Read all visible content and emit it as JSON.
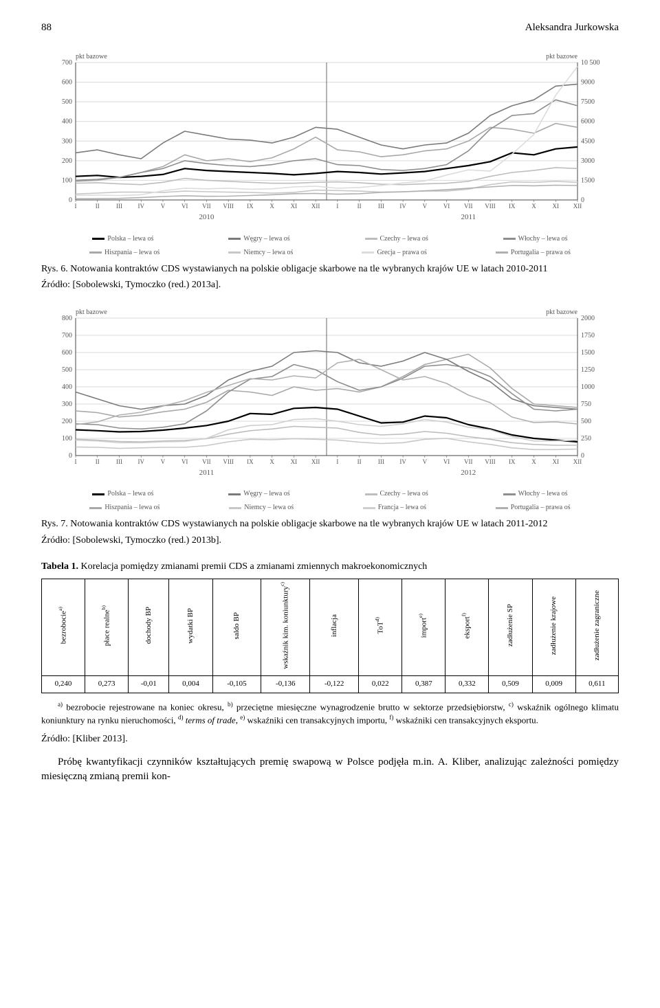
{
  "page": {
    "number": "88",
    "author": "Aleksandra Jurkowska"
  },
  "chart1": {
    "type": "line",
    "left_axis_label": "pkt bazowe",
    "right_axis_label": "pkt bazowe",
    "left_ticks": [
      0,
      100,
      200,
      300,
      400,
      500,
      600,
      700
    ],
    "right_ticks": [
      0,
      1500,
      3000,
      4500,
      6000,
      7500,
      9000,
      10500
    ],
    "x_months": [
      "I",
      "II",
      "III",
      "IV",
      "V",
      "VI",
      "VII",
      "VIII",
      "IX",
      "X",
      "XI",
      "XII",
      "I",
      "II",
      "III",
      "IV",
      "V",
      "VI",
      "VII",
      "VIII",
      "IX",
      "X",
      "XI",
      "XII"
    ],
    "x_years": [
      "2010",
      "2011"
    ],
    "background_color": "#ffffff",
    "grid_color": "#d9d9d9",
    "axis_color": "#444444",
    "text_color": "#555555",
    "label_fontsize": 10,
    "line_width_main": 2.2,
    "line_width_other": 1.6,
    "series": [
      {
        "name": "Polska – lewa oś",
        "color": "#000000",
        "width": 2.2,
        "axis": "left",
        "data": [
          120,
          125,
          115,
          120,
          130,
          160,
          150,
          145,
          140,
          135,
          128,
          135,
          145,
          140,
          132,
          138,
          145,
          160,
          175,
          195,
          240,
          230,
          260,
          270
        ]
      },
      {
        "name": "Hiszpania – lewa oś",
        "color": "#a8a8a8",
        "width": 1.6,
        "axis": "left",
        "data": [
          95,
          100,
          115,
          140,
          170,
          230,
          200,
          210,
          195,
          215,
          260,
          320,
          255,
          245,
          220,
          230,
          250,
          260,
          300,
          370,
          360,
          340,
          390,
          370
        ]
      },
      {
        "name": "Węgry – lewa oś",
        "color": "#7a7a7a",
        "width": 1.6,
        "axis": "left",
        "data": [
          240,
          255,
          230,
          210,
          290,
          350,
          330,
          310,
          305,
          290,
          320,
          370,
          360,
          320,
          280,
          260,
          280,
          290,
          340,
          430,
          480,
          510,
          580,
          590
        ]
      },
      {
        "name": "Niemcy – lewa oś",
        "color": "#c7c7c7",
        "width": 1.6,
        "axis": "left",
        "data": [
          30,
          35,
          40,
          40,
          38,
          45,
          42,
          40,
          38,
          35,
          38,
          50,
          48,
          45,
          40,
          42,
          45,
          45,
          55,
          78,
          92,
          90,
          95,
          90
        ]
      },
      {
        "name": "Czechy – lewa oś",
        "color": "#bdbdbd",
        "width": 1.6,
        "axis": "left",
        "data": [
          85,
          88,
          82,
          78,
          90,
          110,
          100,
          95,
          90,
          85,
          85,
          90,
          92,
          88,
          80,
          78,
          82,
          85,
          95,
          120,
          140,
          150,
          165,
          160
        ]
      },
      {
        "name": "Włochy – lewa oś",
        "color": "#8e8e8e",
        "width": 1.6,
        "axis": "left",
        "data": [
          100,
          105,
          115,
          140,
          160,
          200,
          185,
          175,
          170,
          180,
          200,
          210,
          180,
          175,
          155,
          150,
          160,
          180,
          250,
          360,
          430,
          440,
          510,
          480
        ]
      },
      {
        "name": "Grecja – prawa oś",
        "color": "#dcdcdc",
        "width": 1.6,
        "axis": "right",
        "data": [
          350,
          370,
          340,
          400,
          700,
          900,
          850,
          900,
          820,
          850,
          1000,
          1050,
          900,
          950,
          1100,
          1300,
          1450,
          1900,
          2300,
          2200,
          3500,
          5000,
          8000,
          10200
        ]
      },
      {
        "name": "Portugalia – prawa oś",
        "color": "#b0b0b0",
        "width": 1.6,
        "axis": "right",
        "data": [
          95,
          100,
          120,
          180,
          260,
          320,
          280,
          290,
          340,
          400,
          480,
          500,
          440,
          480,
          580,
          620,
          700,
          780,
          900,
          1000,
          1100,
          1080,
          1130,
          1100
        ]
      }
    ],
    "legend": [
      {
        "label": "Polska – lewa oś",
        "color": "#000000"
      },
      {
        "label": "Węgry – lewa oś",
        "color": "#7a7a7a"
      },
      {
        "label": "Czechy – lewa oś",
        "color": "#bdbdbd"
      },
      {
        "label": "Włochy – lewa oś",
        "color": "#8e8e8e"
      },
      {
        "label": "Hiszpania – lewa oś",
        "color": "#a8a8a8"
      },
      {
        "label": "Niemcy – lewa oś",
        "color": "#c7c7c7"
      },
      {
        "label": "Grecja – prawa oś",
        "color": "#dcdcdc"
      },
      {
        "label": "Portugalia – prawa oś",
        "color": "#b0b0b0"
      }
    ],
    "caption": "Rys. 6. Notowania kontraktów CDS wystawianych na polskie obligacje skarbowe na tle wybranych krajów UE w latach 2010-2011",
    "source": "Źródło: [Sobolewski, Tymoczko (red.) 2013a]."
  },
  "chart2": {
    "type": "line",
    "left_axis_label": "pkt bazowe",
    "right_axis_label": "pkt bazowe",
    "left_ticks": [
      0,
      100,
      200,
      300,
      400,
      500,
      600,
      700,
      800
    ],
    "right_ticks": [
      0,
      250,
      500,
      750,
      1000,
      1250,
      1500,
      1750,
      2000
    ],
    "x_months": [
      "I",
      "II",
      "III",
      "IV",
      "V",
      "VI",
      "VII",
      "VIII",
      "IX",
      "X",
      "XI",
      "XII",
      "I",
      "II",
      "III",
      "IV",
      "V",
      "VI",
      "VII",
      "VIII",
      "IX",
      "X",
      "XI",
      "XII"
    ],
    "x_years": [
      "2011",
      "2012"
    ],
    "background_color": "#ffffff",
    "grid_color": "#d9d9d9",
    "axis_color": "#444444",
    "text_color": "#555555",
    "label_fontsize": 10,
    "line_width_main": 2.2,
    "line_width_other": 1.6,
    "series": [
      {
        "name": "Polska – lewa oś",
        "color": "#000000",
        "width": 2.2,
        "axis": "left",
        "data": [
          150,
          145,
          138,
          140,
          148,
          160,
          175,
          200,
          245,
          240,
          275,
          280,
          270,
          230,
          190,
          195,
          230,
          220,
          180,
          155,
          120,
          100,
          90,
          80
        ]
      },
      {
        "name": "Hiszpania – lewa oś",
        "color": "#a8a8a8",
        "width": 1.6,
        "axis": "left",
        "data": [
          260,
          250,
          225,
          235,
          255,
          270,
          310,
          380,
          370,
          350,
          400,
          380,
          390,
          370,
          400,
          460,
          530,
          560,
          590,
          510,
          390,
          300,
          290,
          280
        ]
      },
      {
        "name": "Węgry – lewa oś",
        "color": "#7a7a7a",
        "width": 1.6,
        "axis": "left",
        "data": [
          370,
          330,
          290,
          270,
          290,
          300,
          350,
          440,
          490,
          520,
          600,
          610,
          600,
          540,
          520,
          550,
          600,
          560,
          490,
          430,
          330,
          290,
          280,
          270
        ]
      },
      {
        "name": "Niemcy – lewa oś",
        "color": "#c7c7c7",
        "width": 1.6,
        "axis": "left",
        "data": [
          50,
          48,
          42,
          45,
          48,
          48,
          58,
          80,
          95,
          92,
          98,
          95,
          90,
          78,
          70,
          75,
          95,
          100,
          80,
          65,
          45,
          35,
          35,
          38
        ]
      },
      {
        "name": "Czechy – lewa oś",
        "color": "#bdbdbd",
        "width": 1.6,
        "axis": "left",
        "data": [
          95,
          90,
          82,
          80,
          85,
          88,
          98,
          125,
          145,
          155,
          170,
          165,
          160,
          135,
          120,
          125,
          140,
          130,
          110,
          95,
          75,
          65,
          60,
          60
        ]
      },
      {
        "name": "Francja – lewa oś",
        "color": "#cfcfcf",
        "width": 1.6,
        "axis": "left",
        "data": [
          90,
          85,
          75,
          75,
          80,
          82,
          100,
          150,
          175,
          180,
          210,
          215,
          200,
          180,
          170,
          185,
          210,
          195,
          165,
          150,
          110,
          85,
          85,
          90
        ]
      },
      {
        "name": "Włochy – lewa oś",
        "color": "#8e8e8e",
        "width": 1.6,
        "axis": "left",
        "data": [
          185,
          180,
          160,
          155,
          165,
          185,
          260,
          370,
          445,
          460,
          530,
          500,
          430,
          380,
          400,
          450,
          520,
          530,
          510,
          460,
          360,
          270,
          260,
          270
        ]
      },
      {
        "name": "Portugalia – prawa oś",
        "color": "#b0b0b0",
        "width": 1.6,
        "axis": "right",
        "data": [
          450,
          490,
          590,
          630,
          720,
          800,
          920,
          1020,
          1120,
          1100,
          1160,
          1130,
          1350,
          1400,
          1250,
          1100,
          1150,
          1050,
          880,
          770,
          560,
          480,
          490,
          460
        ]
      }
    ],
    "legend": [
      {
        "label": "Polska – lewa oś",
        "color": "#000000"
      },
      {
        "label": "Węgry – lewa oś",
        "color": "#7a7a7a"
      },
      {
        "label": "Czechy – lewa oś",
        "color": "#bdbdbd"
      },
      {
        "label": "Włochy – lewa oś",
        "color": "#8e8e8e"
      },
      {
        "label": "Hiszpania – lewa oś",
        "color": "#a8a8a8"
      },
      {
        "label": "Niemcy – lewa oś",
        "color": "#c7c7c7"
      },
      {
        "label": "Francja – lewa oś",
        "color": "#cfcfcf"
      },
      {
        "label": "Portugalia – prawa oś",
        "color": "#b0b0b0"
      }
    ],
    "caption": "Rys. 7. Notowania kontraktów CDS wystawianych na polskie obligacje skarbowe na tle wybranych krajów UE w latach 2011-2012",
    "source": "Źródło: [Sobolewski, Tymoczko (red.) 2013b]."
  },
  "table": {
    "caption_prefix": "Tabela 1.",
    "caption_text": " Korelacja pomiędzy zmianami premii CDS a zmianami zmiennych makroekonomicznych",
    "columns": [
      {
        "label": "bezrobocie",
        "sup": "a)"
      },
      {
        "label": "płace realne",
        "sup": "b)"
      },
      {
        "label": "dochody BP",
        "sup": ""
      },
      {
        "label": "wydatki BP",
        "sup": ""
      },
      {
        "label": "saldo BP",
        "sup": ""
      },
      {
        "label": "wskaźnik kim. koniunktury",
        "sup": "c)"
      },
      {
        "label": "inflacja",
        "sup": ""
      },
      {
        "label": "ToT",
        "sup": "d)"
      },
      {
        "label": "import",
        "sup": "e)"
      },
      {
        "label": "eksport",
        "sup": "f)"
      },
      {
        "label": "zadłużenie SP",
        "sup": ""
      },
      {
        "label": "zadłużenie krajowe",
        "sup": ""
      },
      {
        "label": "zadłużenie zagraniczne",
        "sup": ""
      }
    ],
    "row": [
      "0,240",
      "0,273",
      "-0,01",
      "0,004",
      "-0,105",
      "-0,136",
      "-0,122",
      "0,022",
      "0,387",
      "0,332",
      "0,509",
      "0,009",
      "0,611"
    ],
    "footnotes_html": "a) bezrobocie rejestrowane na koniec okresu, b) przeciętne miesięczne wynagrodzenie brutto w sektorze przedsiębiorstw, c) wskaźnik ogólnego klimatu koniunktury na rynku nieruchomości, d) terms of trade, e) wskaźniki cen transakcyjnych importu, f) wskaźniki cen transakcyjnych eksportu.",
    "source": "Źródło: [Kliber 2013]."
  },
  "body_paragraph": "Próbę kwantyfikacji czynników kształtujących premię swapową w Polsce podjęła m.in. A. Kliber, analizując zależności pomiędzy miesięczną zmianą premii kon-"
}
